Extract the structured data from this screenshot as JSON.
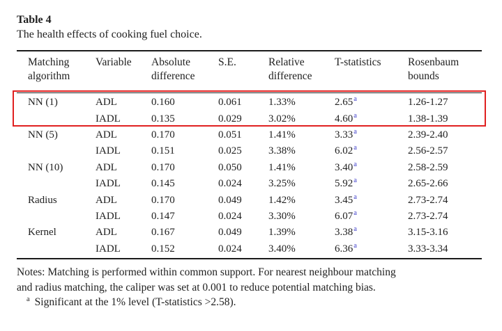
{
  "title": "Table 4",
  "caption": "The health effects of cooking fuel choice.",
  "table": {
    "columns": [
      "Matching algorithm",
      "Variable",
      "Absolute difference",
      "S.E.",
      "Relative difference",
      "T-statistics",
      "Rosenbaum bounds"
    ],
    "rows": [
      {
        "algorithm": "NN (1)",
        "variable": "ADL",
        "absolute_difference": "0.160",
        "se": "0.061",
        "relative_difference": "1.33%",
        "t_statistic": "2.65",
        "t_sup": "a",
        "rosenbaum_bounds": "1.26-1.27",
        "highlighted": true
      },
      {
        "algorithm": "",
        "variable": "IADL",
        "absolute_difference": "0.135",
        "se": "0.029",
        "relative_difference": "3.02%",
        "t_statistic": "4.60",
        "t_sup": "a",
        "rosenbaum_bounds": "1.38-1.39",
        "highlighted": true
      },
      {
        "algorithm": "NN (5)",
        "variable": "ADL",
        "absolute_difference": "0.170",
        "se": "0.051",
        "relative_difference": "1.41%",
        "t_statistic": "3.33",
        "t_sup": "a",
        "rosenbaum_bounds": "2.39-2.40",
        "highlighted": false
      },
      {
        "algorithm": "",
        "variable": "IADL",
        "absolute_difference": "0.151",
        "se": "0.025",
        "relative_difference": "3.38%",
        "t_statistic": "6.02",
        "t_sup": "a",
        "rosenbaum_bounds": "2.56-2.57",
        "highlighted": false
      },
      {
        "algorithm": "NN (10)",
        "variable": "ADL",
        "absolute_difference": "0.170",
        "se": "0.050",
        "relative_difference": "1.41%",
        "t_statistic": "3.40",
        "t_sup": "a",
        "rosenbaum_bounds": "2.58-2.59",
        "highlighted": false
      },
      {
        "algorithm": "",
        "variable": "IADL",
        "absolute_difference": "0.145",
        "se": "0.024",
        "relative_difference": "3.25%",
        "t_statistic": "5.92",
        "t_sup": "a",
        "rosenbaum_bounds": "2.65-2.66",
        "highlighted": false
      },
      {
        "algorithm": "Radius",
        "variable": "ADL",
        "absolute_difference": "0.170",
        "se": "0.049",
        "relative_difference": "1.42%",
        "t_statistic": "3.45",
        "t_sup": "a",
        "rosenbaum_bounds": "2.73-2.74",
        "highlighted": false
      },
      {
        "algorithm": "",
        "variable": "IADL",
        "absolute_difference": "0.147",
        "se": "0.024",
        "relative_difference": "3.30%",
        "t_statistic": "6.07",
        "t_sup": "a",
        "rosenbaum_bounds": "2.73-2.74",
        "highlighted": false
      },
      {
        "algorithm": "Kernel",
        "variable": "ADL",
        "absolute_difference": "0.167",
        "se": "0.049",
        "relative_difference": "1.39%",
        "t_statistic": "3.38",
        "t_sup": "a",
        "rosenbaum_bounds": "3.15-3.16",
        "highlighted": false
      },
      {
        "algorithm": "",
        "variable": "IADL",
        "absolute_difference": "0.152",
        "se": "0.024",
        "relative_difference": "3.40%",
        "t_statistic": "6.36",
        "t_sup": "a",
        "rosenbaum_bounds": "3.33-3.34",
        "highlighted": false
      }
    ]
  },
  "highlight": {
    "color": "#e02020",
    "covers_rows": [
      "NN (1) ADL",
      "NN (1) IADL"
    ]
  },
  "notes": {
    "line1": "Notes: Matching is performed within common support. For nearest neighbour matching",
    "line2": "and radius matching, the caliper was set at 0.001 to reduce potential matching bias.",
    "footnote_marker": "a",
    "footnote_text": "Significant at the 1% level (T-statistics >2.58)."
  },
  "colors": {
    "text": "#212121",
    "rule": "#1a1a1a",
    "highlight_red": "#e02020",
    "superscript_blue": "#3b3bc8"
  }
}
